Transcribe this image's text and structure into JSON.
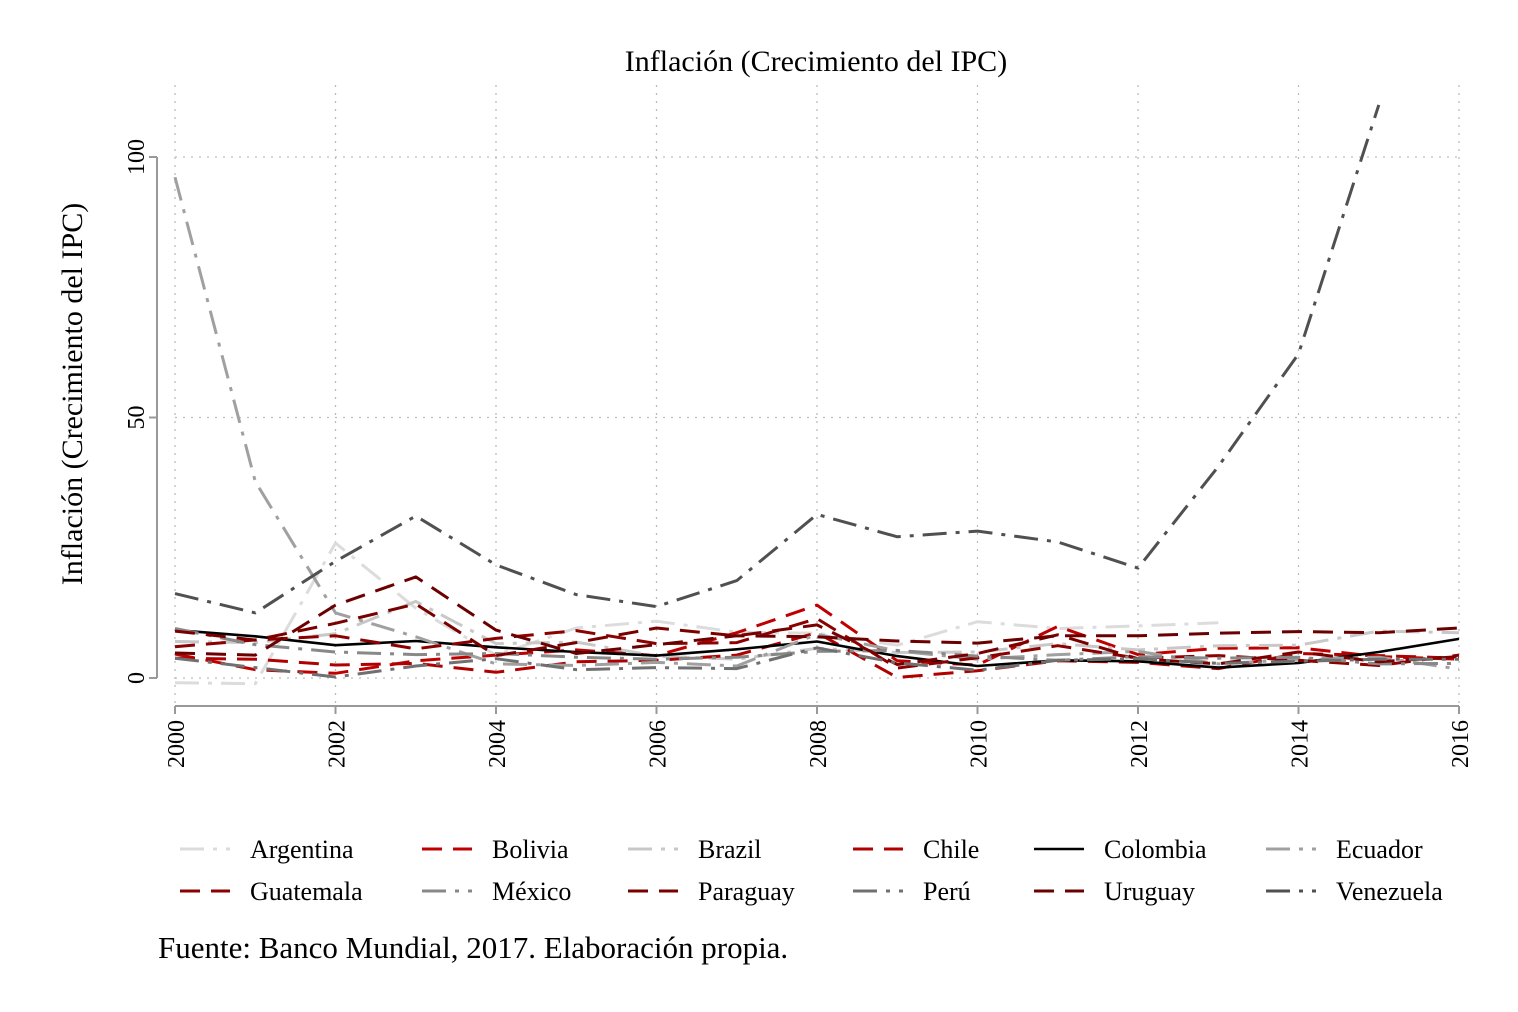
{
  "chart_data": {
    "type": "line",
    "title": "Inflación (Crecimiento del IPC)",
    "xlabel": "",
    "ylabel": "Inflación (Crecimiento del IPC)",
    "xlim": [
      2000,
      2016
    ],
    "ylim": [
      -5,
      113
    ],
    "x_ticks": [
      2000,
      2002,
      2004,
      2006,
      2008,
      2010,
      2012,
      2014,
      2016
    ],
    "y_ticks": [
      0,
      50,
      100
    ],
    "grid": true,
    "legend_position": "bottom",
    "series": [
      {
        "name": "Argentina",
        "color": "#dcdcdc",
        "dash": "dashdot",
        "x": [
          2000,
          2001,
          2002,
          2003,
          2004,
          2005,
          2006,
          2007,
          2008,
          2009,
          2010,
          2011,
          2012,
          2013
        ],
        "values": [
          -0.9,
          -1.1,
          25.9,
          13.4,
          4.4,
          9.6,
          10.9,
          8.8,
          8.6,
          6.3,
          10.8,
          9.5,
          10.0,
          10.6
        ]
      },
      {
        "name": "Bolivia",
        "color": "#c00000",
        "dash": "dash",
        "x": [
          2000,
          2001,
          2002,
          2003,
          2004,
          2005,
          2006,
          2007,
          2008,
          2009,
          2010,
          2011,
          2012,
          2013,
          2014,
          2015,
          2016
        ],
        "values": [
          4.6,
          1.6,
          0.9,
          3.3,
          4.4,
          5.4,
          4.3,
          8.7,
          14.0,
          3.3,
          2.5,
          9.9,
          4.5,
          5.7,
          5.8,
          4.1,
          3.6
        ]
      },
      {
        "name": "Brazil",
        "color": "#c8c8c8",
        "dash": "dashdot",
        "x": [
          2000,
          2001,
          2002,
          2003,
          2004,
          2005,
          2006,
          2007,
          2008,
          2009,
          2010,
          2011,
          2012,
          2013,
          2014,
          2015,
          2016
        ],
        "values": [
          7.0,
          6.8,
          8.5,
          14.7,
          6.6,
          6.9,
          4.2,
          3.6,
          5.7,
          4.9,
          5.0,
          6.6,
          5.4,
          6.2,
          6.3,
          9.0,
          8.7
        ]
      },
      {
        "name": "Chile",
        "color": "#b00000",
        "dash": "dash",
        "x": [
          2000,
          2001,
          2002,
          2003,
          2004,
          2005,
          2006,
          2007,
          2008,
          2009,
          2010,
          2011,
          2012,
          2013,
          2014,
          2015,
          2016
        ],
        "values": [
          3.8,
          3.6,
          2.5,
          2.8,
          1.1,
          3.1,
          3.4,
          4.4,
          8.7,
          0.1,
          1.4,
          3.3,
          3.0,
          1.8,
          4.7,
          4.3,
          3.8
        ]
      },
      {
        "name": "Colombia",
        "color": "#000000",
        "dash": "solid",
        "x": [
          2000,
          2001,
          2002,
          2003,
          2004,
          2005,
          2006,
          2007,
          2008,
          2009,
          2010,
          2011,
          2012,
          2013,
          2014,
          2015,
          2016
        ],
        "values": [
          9.2,
          8.0,
          6.3,
          7.1,
          5.9,
          5.0,
          4.3,
          5.5,
          7.0,
          4.2,
          2.3,
          3.4,
          3.2,
          2.0,
          2.9,
          5.0,
          7.5
        ]
      },
      {
        "name": "Ecuador",
        "color": "#a0a0a0",
        "dash": "dashdot",
        "x": [
          2000,
          2001,
          2002,
          2003,
          2004,
          2005,
          2006,
          2007,
          2008,
          2009,
          2010,
          2011,
          2012,
          2013,
          2014,
          2015,
          2016
        ],
        "values": [
          96.1,
          37.7,
          12.5,
          7.9,
          2.7,
          2.4,
          3.0,
          2.3,
          8.4,
          5.2,
          3.6,
          4.5,
          5.1,
          2.7,
          3.6,
          4.0,
          1.7
        ]
      },
      {
        "name": "Guatemala",
        "color": "#8b0000",
        "dash": "dash",
        "x": [
          2000,
          2001,
          2002,
          2003,
          2004,
          2005,
          2006,
          2007,
          2008,
          2009,
          2010,
          2011,
          2012,
          2013,
          2014,
          2015,
          2016
        ],
        "values": [
          6.0,
          7.3,
          8.1,
          5.6,
          7.6,
          9.1,
          6.6,
          6.8,
          11.4,
          1.9,
          3.9,
          6.2,
          3.8,
          4.3,
          3.4,
          2.4,
          4.4
        ]
      },
      {
        "name": "México",
        "color": "#888888",
        "dash": "dashdot",
        "x": [
          2000,
          2001,
          2002,
          2003,
          2004,
          2005,
          2006,
          2007,
          2008,
          2009,
          2010,
          2011,
          2012,
          2013,
          2014,
          2015,
          2016
        ],
        "values": [
          9.5,
          6.4,
          5.0,
          4.5,
          4.7,
          4.0,
          3.6,
          4.0,
          5.1,
          5.3,
          4.2,
          3.4,
          4.1,
          3.8,
          4.0,
          2.7,
          2.8
        ]
      },
      {
        "name": "Paraguay",
        "color": "#7a0000",
        "dash": "dash",
        "x": [
          2000,
          2001,
          2002,
          2003,
          2004,
          2005,
          2006,
          2007,
          2008,
          2009,
          2010,
          2011,
          2012,
          2013,
          2014,
          2015,
          2016
        ],
        "values": [
          9.0,
          7.3,
          10.5,
          14.2,
          4.3,
          6.8,
          9.6,
          8.1,
          10.2,
          2.6,
          4.7,
          8.3,
          3.7,
          2.7,
          5.0,
          3.1,
          4.1
        ]
      },
      {
        "name": "Perú",
        "color": "#707070",
        "dash": "dashdot",
        "x": [
          2000,
          2001,
          2002,
          2003,
          2004,
          2005,
          2006,
          2007,
          2008,
          2009,
          2010,
          2011,
          2012,
          2013,
          2014,
          2015,
          2016
        ],
        "values": [
          3.8,
          2.0,
          0.2,
          2.3,
          3.7,
          1.6,
          2.0,
          1.8,
          5.8,
          2.9,
          1.5,
          3.4,
          3.7,
          2.8,
          3.2,
          3.6,
          3.6
        ]
      },
      {
        "name": "Uruguay",
        "color": "#6a0000",
        "dash": "dash",
        "x": [
          2000,
          2001,
          2002,
          2003,
          2004,
          2005,
          2006,
          2007,
          2008,
          2009,
          2010,
          2011,
          2012,
          2013,
          2014,
          2015,
          2016
        ],
        "values": [
          4.8,
          4.4,
          14.0,
          19.4,
          9.2,
          4.7,
          6.4,
          8.1,
          7.9,
          7.1,
          6.7,
          8.1,
          8.1,
          8.6,
          8.9,
          8.7,
          9.6
        ]
      },
      {
        "name": "Venezuela",
        "color": "#505050",
        "dash": "dashdot",
        "x": [
          2000,
          2001,
          2002,
          2003,
          2004,
          2005,
          2006,
          2007,
          2008,
          2009,
          2010,
          2011,
          2012,
          2013,
          2014,
          2015
        ],
        "values": [
          16.2,
          12.5,
          22.4,
          31.1,
          21.7,
          16.0,
          13.7,
          18.7,
          31.4,
          27.1,
          28.2,
          26.1,
          21.1,
          40.6,
          62.2,
          110.0
        ]
      }
    ]
  },
  "footer": {
    "source": "Fuente: Banco Mundial, 2017. Elaboración propia."
  }
}
